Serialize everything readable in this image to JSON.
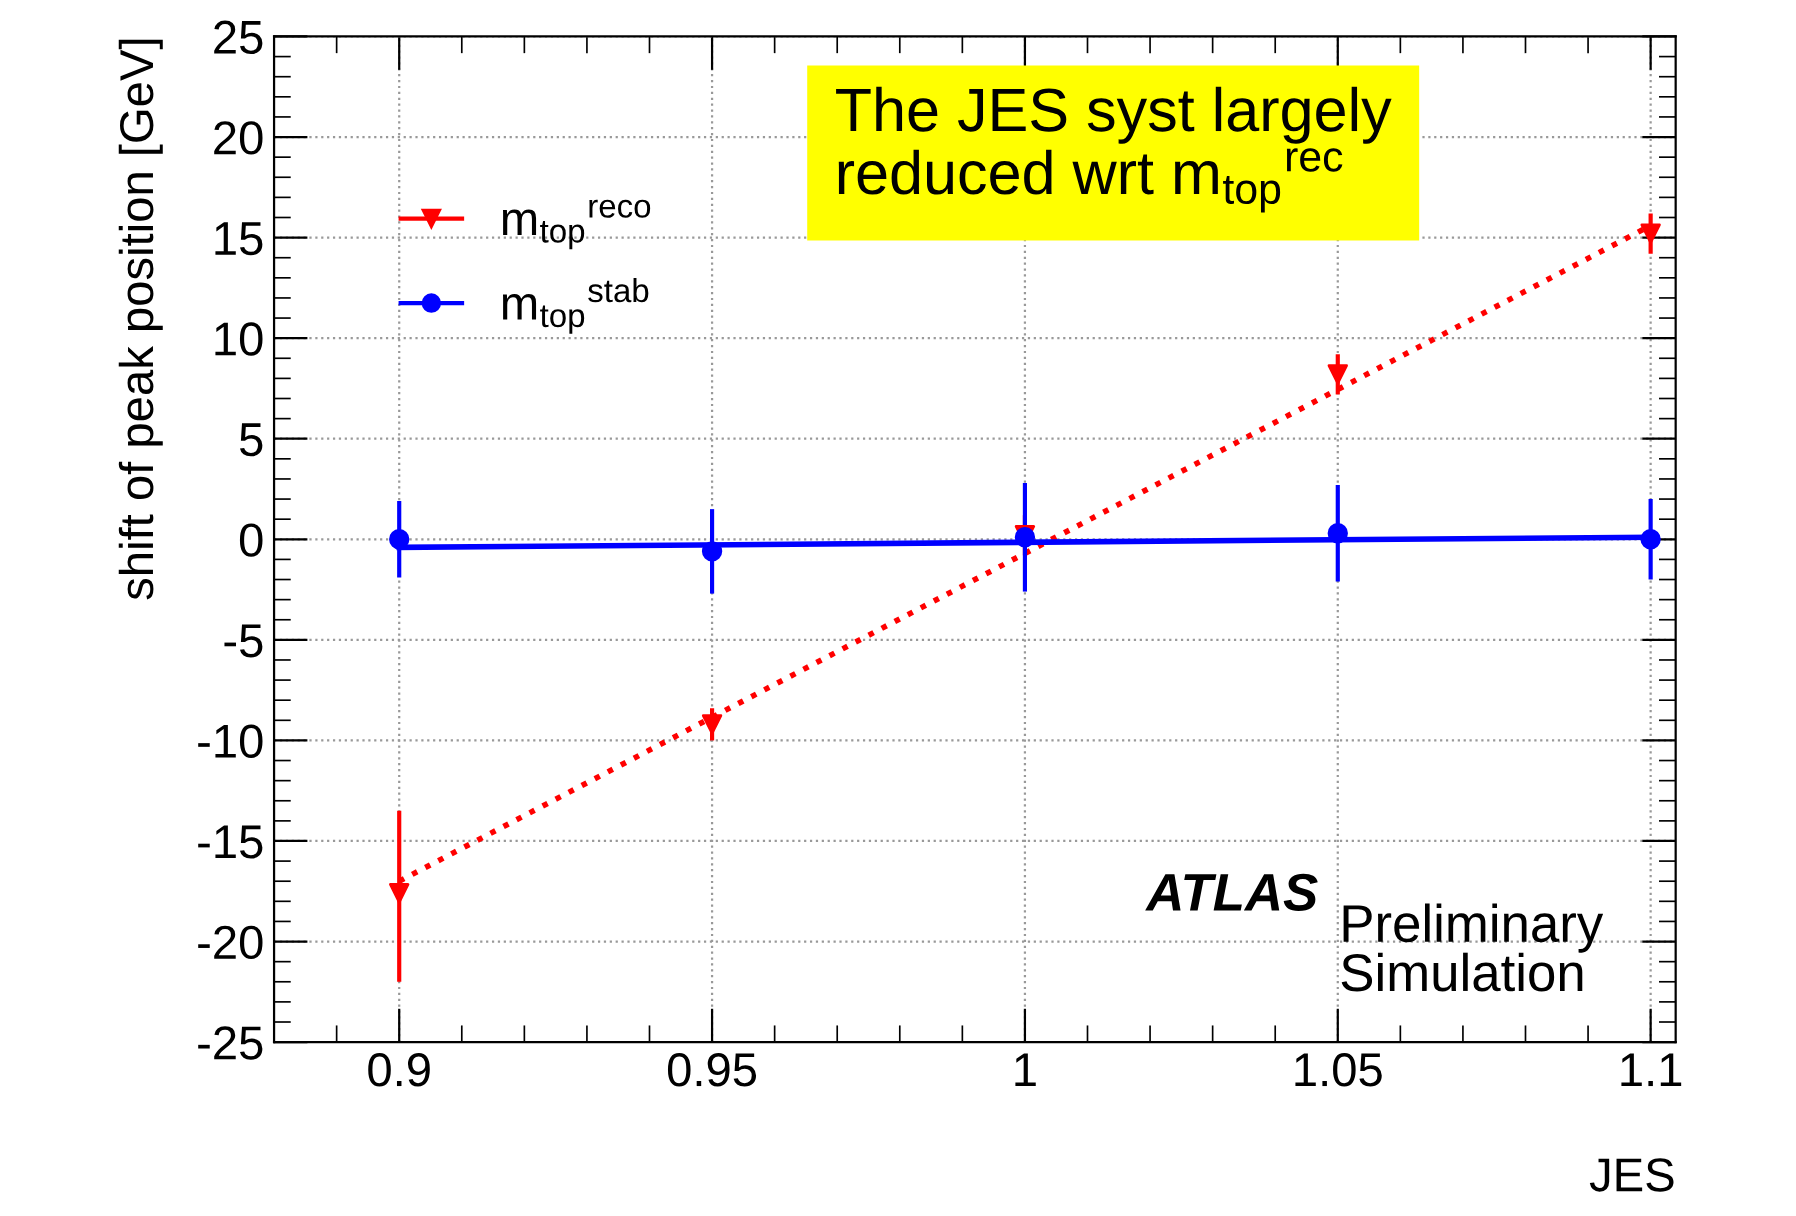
{
  "chart_data": {
    "type": "scatter",
    "xlabel": "JES",
    "ylabel": "shift of peak position [GeV]",
    "xlim": [
      0.88,
      1.104
    ],
    "xticks": [
      0.9,
      0.95,
      1,
      1.05,
      1.1
    ],
    "ylim": [
      -25,
      25
    ],
    "yticks": [
      -25,
      -20,
      -15,
      -10,
      -5,
      0,
      5,
      10,
      15,
      20,
      25
    ],
    "grid": true,
    "legend": "top left",
    "series": [
      {
        "type": "line",
        "color": "#ff0000",
        "x": [
          0.9,
          1.1
        ],
        "values": [
          -17,
          15.6
        ],
        "marker": "none",
        "line_style": "dotted"
      },
      {
        "type": "line",
        "color": "#0000ff",
        "x": [
          0.9,
          1.1
        ],
        "values": [
          -0.4,
          0.1
        ],
        "marker": "none",
        "line_style": "solid"
      },
      {
        "name": "m$_{top}$$^{reco}$",
        "color": "#ff0000",
        "marker": "triangle",
        "x": [
          0.9,
          0.95,
          1,
          1.05,
          1.1
        ],
        "values": [
          -17.6,
          -9.2,
          0.2,
          8.2,
          15.2
        ],
        "errors": [
          [
            -22,
            -13.5
          ],
          0.8,
          1,
          1,
          1
        ]
      },
      {
        "name": "m$_{top}$$^{stab}$",
        "color": "#0000ff",
        "marker": "circle",
        "x": [
          0.9,
          0.95,
          1,
          1.05,
          1.1
        ],
        "values": [
          0,
          -0.6,
          0.1,
          0.3,
          0
        ],
        "errors": [
          1.9,
          2.1,
          2.7,
          2.4,
          2
        ]
      }
    ],
    "annotations": [
      "The JES syst largely\nreduced wrt m$_{top}$$^{rec}$",
      "ATLAS",
      "Preliminary\nSimulation"
    ]
  }
}
